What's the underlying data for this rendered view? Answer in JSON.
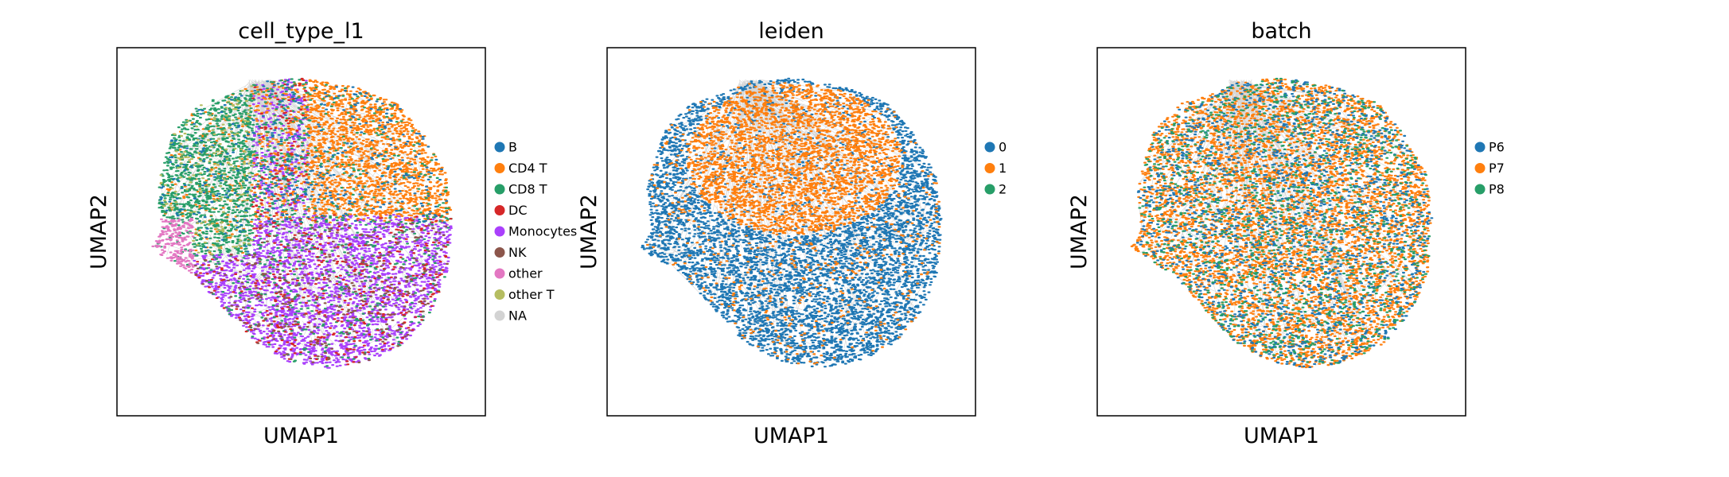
{
  "chart_data": [
    {
      "type": "scatter",
      "title": "cell_type_l1",
      "xlabel": "UMAP1",
      "ylabel": "UMAP2",
      "ticks": "none",
      "legend_placement": "right-outside",
      "edges": "gray neighbor-graph lines drawn under points",
      "legend": [
        {
          "name": "B",
          "color": "#1f77b4"
        },
        {
          "name": "CD4 T",
          "color": "#ff7f0e"
        },
        {
          "name": "CD8 T",
          "color": "#279e68"
        },
        {
          "name": "DC",
          "color": "#d62728"
        },
        {
          "name": "Monocytes",
          "color": "#aa40fc"
        },
        {
          "name": "NK",
          "color": "#8c564b"
        },
        {
          "name": "other",
          "color": "#e377c2"
        },
        {
          "name": "other T",
          "color": "#b5bd61"
        },
        {
          "name": "NA",
          "color": "#d3d3d3"
        }
      ],
      "dominant_regions": [
        {
          "name": "CD4 T",
          "region": "upper-right"
        },
        {
          "name": "CD8 T",
          "region": "left"
        },
        {
          "name": "Monocytes",
          "region": "lower-center"
        },
        {
          "name": "other",
          "region": "far-left lobe"
        }
      ]
    },
    {
      "type": "scatter",
      "title": "leiden",
      "xlabel": "UMAP1",
      "ylabel": "UMAP2",
      "ticks": "none",
      "legend_placement": "right-outside",
      "edges": "gray neighbor-graph lines drawn under points",
      "legend": [
        {
          "name": "0",
          "color": "#1f77b4"
        },
        {
          "name": "1",
          "color": "#ff7f0e"
        },
        {
          "name": "2",
          "color": "#279e68"
        }
      ],
      "dominant_regions": [
        {
          "name": "0",
          "region": "most of cloud"
        },
        {
          "name": "1",
          "region": "upper-center"
        },
        {
          "name": "2",
          "region": "top-left tip"
        }
      ]
    },
    {
      "type": "scatter",
      "title": "batch",
      "xlabel": "UMAP1",
      "ylabel": "UMAP2",
      "ticks": "none",
      "legend_placement": "right-outside",
      "edges": "gray neighbor-graph lines drawn under points",
      "legend": [
        {
          "name": "P6",
          "color": "#1f77b4"
        },
        {
          "name": "P7",
          "color": "#ff7f0e"
        },
        {
          "name": "P8",
          "color": "#279e68"
        }
      ],
      "dominant_regions": [
        {
          "name": "P7",
          "region": "dominant, uniformly mixed"
        },
        {
          "name": "P6",
          "region": "uniformly mixed"
        },
        {
          "name": "P8",
          "region": "uniformly mixed"
        }
      ]
    }
  ]
}
